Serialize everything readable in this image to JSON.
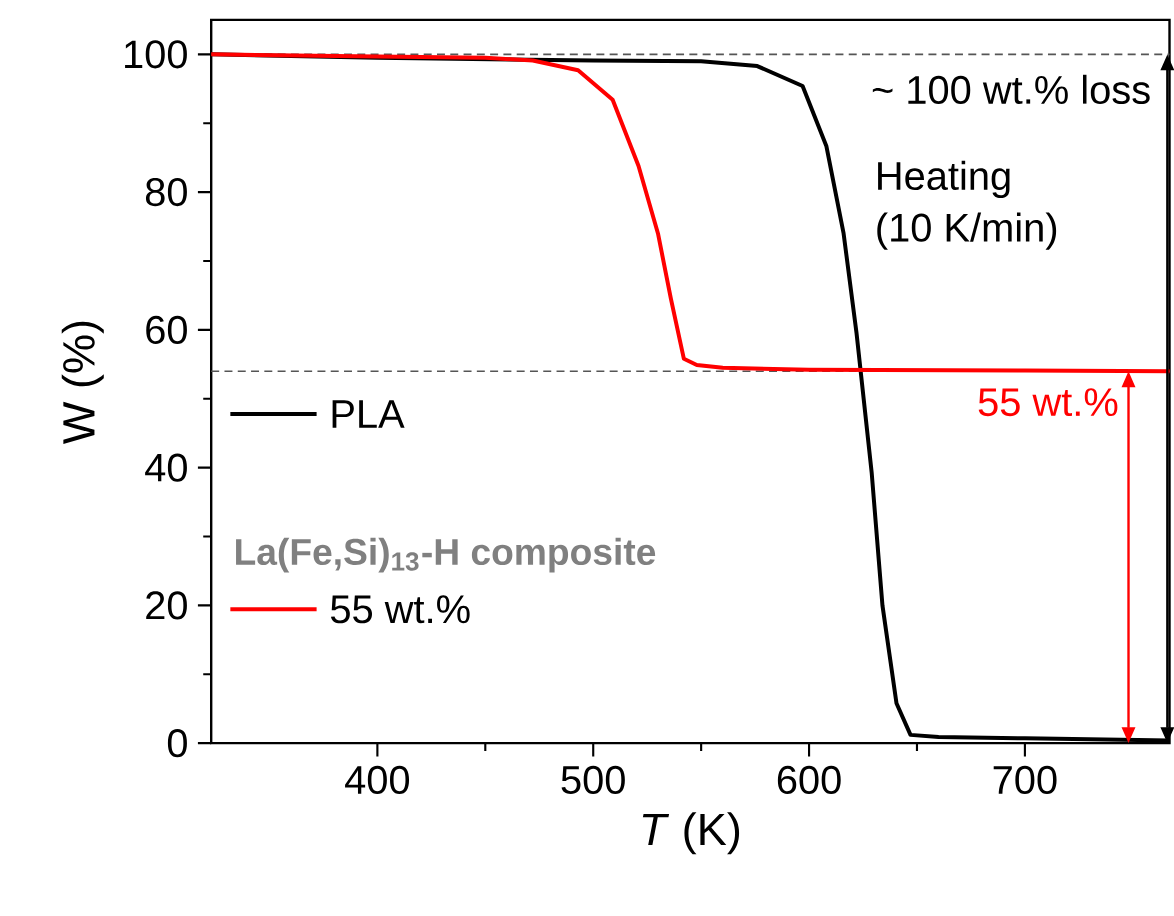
{
  "chart_data": {
    "type": "line",
    "xlabel": "*T* (K)",
    "ylabel": "W (%)",
    "xlim": [
      323,
      767
    ],
    "ylim": [
      0,
      105
    ],
    "xticks": [
      400,
      500,
      600,
      700
    ],
    "yticks": [
      0,
      20,
      40,
      60,
      80,
      100
    ],
    "legend": "left",
    "legend_title": "La(Fe,Si)$_{13}$-H composite",
    "series": [
      {
        "name": "PLA",
        "color": "#000000",
        "x": [
          323,
          400,
          500,
          550,
          576,
          597,
          608,
          616,
          622,
          629,
          634,
          640.5,
          647,
          660,
          700,
          767
        ],
        "values": [
          100,
          99.5,
          99.1,
          99.0,
          98.3,
          95.4,
          86.7,
          74,
          59.5,
          39.3,
          20,
          5.8,
          1.2,
          0.9,
          0.7,
          0.4
        ]
      },
      {
        "name": "55 wt.%",
        "color": "#ff0000",
        "x": [
          323,
          400,
          450,
          472,
          493,
          509,
          521,
          530,
          536,
          542,
          548,
          560,
          600,
          700,
          767
        ],
        "values": [
          100,
          99.7,
          99.5,
          99.1,
          97.7,
          93.4,
          83.8,
          74,
          64.5,
          55.8,
          54.9,
          54.5,
          54.2,
          54.1,
          54
        ]
      }
    ],
    "ref_lines": [
      {
        "axis": "y",
        "value": 100,
        "color": "#555555",
        "line_style": "dashed"
      },
      {
        "axis": "y",
        "value": 54,
        "color": "#555555",
        "line_style": "dashed"
      }
    ],
    "annotations": [
      "~ 100 wt.% loss",
      "Heating",
      "(10 K/min)",
      "55 wt.%"
    ]
  }
}
